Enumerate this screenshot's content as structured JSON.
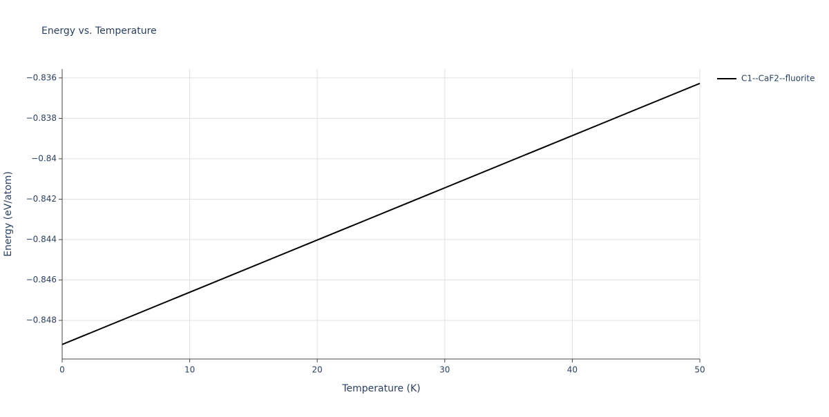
{
  "chart_data": {
    "type": "line",
    "title": "Energy vs. Temperature",
    "x_label": "Temperature (K)",
    "y_label": "Energy (eV/atom)",
    "x": [
      0,
      50
    ],
    "series": [
      {
        "name": "C1--CaF2--fluorite",
        "color": "#000000",
        "values": [
          -0.84919,
          -0.83627
        ]
      }
    ],
    "xlim": [
      0,
      50
    ],
    "xticks": [
      0,
      10,
      20,
      30,
      40,
      50
    ],
    "ylim": [
      -0.84991,
      -0.83556
    ],
    "yticks": [
      {
        "value": -0.848,
        "label": "−0.848"
      },
      {
        "value": -0.846,
        "label": "−0.846"
      },
      {
        "value": -0.844,
        "label": "−0.844"
      },
      {
        "value": -0.842,
        "label": "−0.842"
      },
      {
        "value": -0.84,
        "label": "−0.84"
      },
      {
        "value": -0.838,
        "label": "−0.838"
      },
      {
        "value": -0.836,
        "label": "−0.836"
      }
    ],
    "grid": true
  }
}
